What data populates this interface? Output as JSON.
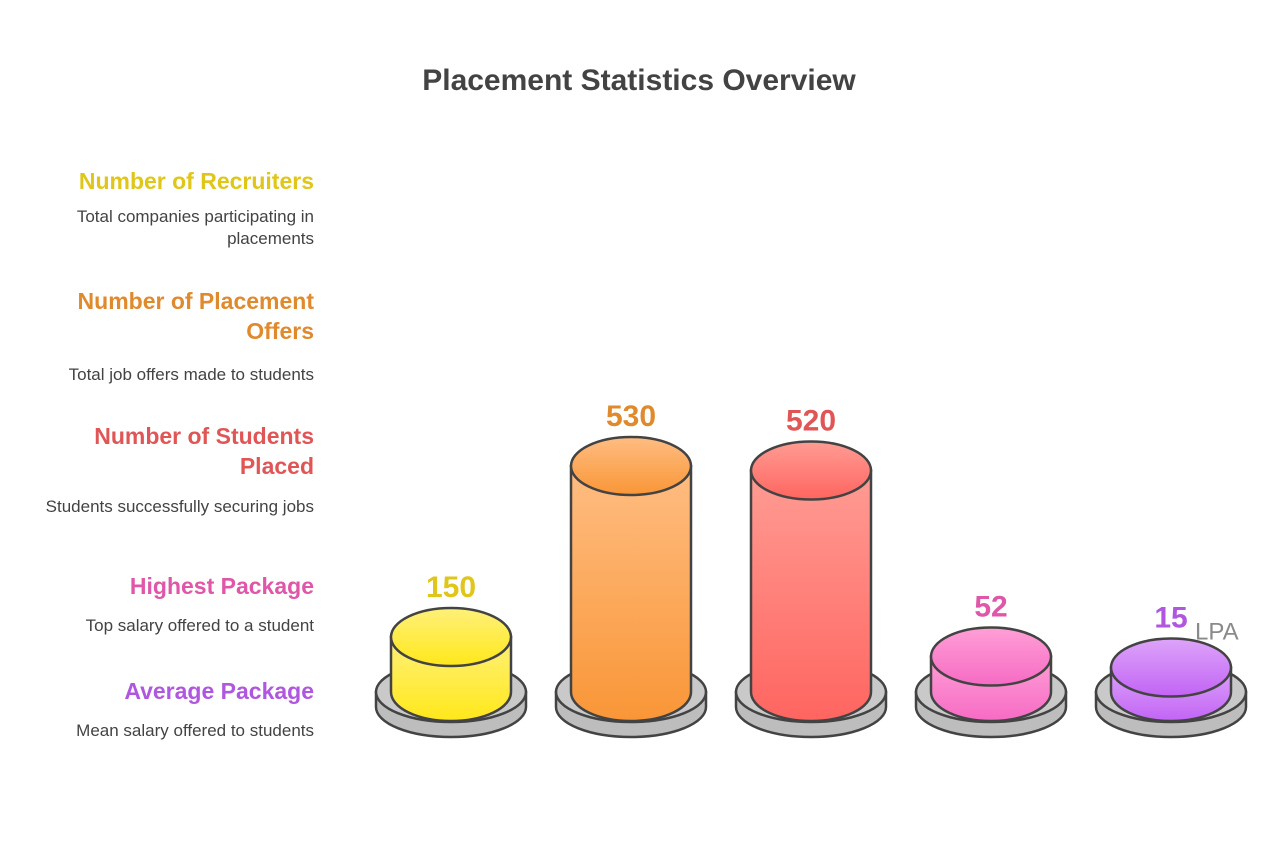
{
  "title": "Placement Statistics Overview",
  "colors": {
    "recruiters": "#e0c619",
    "offers": "#e08a2e",
    "placed": "#e05656",
    "highest": "#e056a8",
    "average": "#b057e0"
  },
  "legend": [
    {
      "title": "Number of Recruiters",
      "description": "Total companies participating in placements",
      "color": "#e0c619"
    },
    {
      "title": "Number of Placement Offers",
      "description": "Total job offers made to students",
      "color": "#e08a2e"
    },
    {
      "title": "Number of Students Placed",
      "description": "Students successfully securing jobs",
      "color": "#e05656"
    },
    {
      "title": "Highest Package",
      "description": "Top salary offered to a student",
      "color": "#e056a8"
    },
    {
      "title": "Average Package",
      "description": "Mean salary offered to students",
      "color": "#b057e0"
    }
  ],
  "chart_data": {
    "type": "bar",
    "title": "Placement Statistics Overview",
    "categories": [
      "Number of Recruiters",
      "Number of Placement Offers",
      "Number of Students Placed",
      "Highest Package",
      "Average Package"
    ],
    "values": [
      150,
      530,
      520,
      52,
      15
    ],
    "value_labels": [
      "150",
      "530",
      "520",
      "52",
      "15"
    ],
    "unit_labels": [
      "",
      "",
      "",
      "",
      "LPA"
    ],
    "grid": false,
    "legend": "left"
  }
}
